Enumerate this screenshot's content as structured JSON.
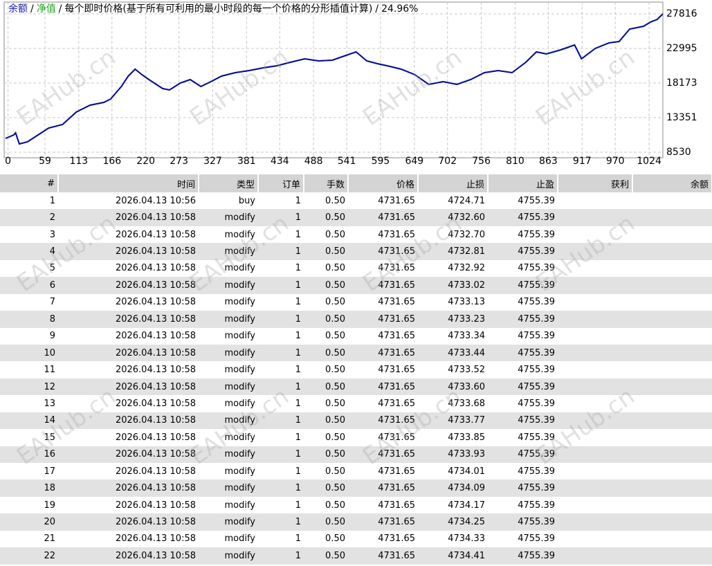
{
  "chart_data": {
    "type": "line",
    "title": "每个即时价格(基于所有可利用的最小时段的每一个价格的分形插值计算)",
    "title_separator": "/",
    "annotation": "24.96%",
    "x": [
      -4,
      9,
      12,
      18,
      31,
      48,
      65,
      87,
      109,
      131,
      153,
      164,
      181,
      192,
      203,
      214,
      225,
      247,
      258,
      275,
      291,
      308,
      324,
      341,
      363,
      385,
      407,
      429,
      451,
      474,
      496,
      518,
      540,
      556,
      573,
      590,
      606,
      628,
      650,
      672,
      695,
      717,
      739,
      761,
      783,
      805,
      827,
      844,
      860,
      883,
      905,
      916,
      938,
      960,
      976,
      993,
      1015,
      1026,
      1037,
      1046
    ],
    "series": [
      {
        "name": "余额",
        "color": "#0a0aa0",
        "values": [
          10460,
          10940,
          11230,
          9690,
          9980,
          10940,
          11910,
          12390,
          14120,
          15090,
          15470,
          15960,
          17690,
          19140,
          20100,
          19330,
          18660,
          17400,
          17210,
          18170,
          18660,
          17690,
          18370,
          19140,
          19620,
          19910,
          20290,
          20580,
          21070,
          21550,
          21260,
          21360,
          22030,
          22510,
          21260,
          20870,
          20580,
          20100,
          19330,
          17980,
          18370,
          17980,
          18660,
          19620,
          19910,
          19620,
          21070,
          22510,
          22220,
          22800,
          23480,
          21550,
          23000,
          23770,
          23960,
          25700,
          26080,
          26660,
          27050,
          27820
        ]
      },
      {
        "name": "净值",
        "color": "#1f9e1f",
        "values": [
          10460,
          10940,
          11230,
          9690,
          9980,
          10940,
          11910,
          12390,
          14120,
          15090,
          15470,
          15960,
          17690,
          19140,
          20100,
          19330,
          18660,
          17400,
          17210,
          18170,
          18660,
          17690,
          18370,
          19140,
          19620,
          19910,
          20290,
          20580,
          21070,
          21550,
          21260,
          21360,
          22030,
          22510,
          21260,
          20870,
          20580,
          20100,
          19330,
          17980,
          18370,
          17980,
          18660,
          19620,
          19910,
          19620,
          21070,
          22510,
          22220,
          22800,
          23480,
          21550,
          23000,
          23770,
          23960,
          25700,
          26080,
          26660,
          27050,
          27820
        ]
      }
    ],
    "xlim": [
      -4,
      1046
    ],
    "xticks": [
      0,
      59,
      113,
      166,
      220,
      273,
      327,
      381,
      434,
      488,
      541,
      595,
      649,
      702,
      756,
      810,
      863,
      917,
      970,
      1024
    ],
    "ylim": [
      7760,
      29360
    ],
    "yticks": [
      8530,
      13351,
      18173,
      22995,
      27816
    ],
    "grid": true
  },
  "watermark": "EAHub.cn",
  "table": {
    "headers": [
      "#",
      "时间",
      "类型",
      "订单",
      "手数",
      "价格",
      "止损",
      "止盈",
      "获利",
      "余额"
    ],
    "rows": [
      [
        "1",
        "2026.04.13 10:56",
        "buy",
        "1",
        "0.50",
        "4731.65",
        "4724.71",
        "4755.39"
      ],
      [
        "2",
        "2026.04.13 10:58",
        "modify",
        "1",
        "0.50",
        "4731.65",
        "4732.60",
        "4755.39"
      ],
      [
        "3",
        "2026.04.13 10:58",
        "modify",
        "1",
        "0.50",
        "4731.65",
        "4732.70",
        "4755.39"
      ],
      [
        "4",
        "2026.04.13 10:58",
        "modify",
        "1",
        "0.50",
        "4731.65",
        "4732.81",
        "4755.39"
      ],
      [
        "5",
        "2026.04.13 10:58",
        "modify",
        "1",
        "0.50",
        "4731.65",
        "4732.92",
        "4755.39"
      ],
      [
        "6",
        "2026.04.13 10:58",
        "modify",
        "1",
        "0.50",
        "4731.65",
        "4733.02",
        "4755.39"
      ],
      [
        "7",
        "2026.04.13 10:58",
        "modify",
        "1",
        "0.50",
        "4731.65",
        "4733.13",
        "4755.39"
      ],
      [
        "8",
        "2026.04.13 10:58",
        "modify",
        "1",
        "0.50",
        "4731.65",
        "4733.23",
        "4755.39"
      ],
      [
        "9",
        "2026.04.13 10:58",
        "modify",
        "1",
        "0.50",
        "4731.65",
        "4733.34",
        "4755.39"
      ],
      [
        "10",
        "2026.04.13 10:58",
        "modify",
        "1",
        "0.50",
        "4731.65",
        "4733.44",
        "4755.39"
      ],
      [
        "11",
        "2026.04.13 10:58",
        "modify",
        "1",
        "0.50",
        "4731.65",
        "4733.52",
        "4755.39"
      ],
      [
        "12",
        "2026.04.13 10:58",
        "modify",
        "1",
        "0.50",
        "4731.65",
        "4733.60",
        "4755.39"
      ],
      [
        "13",
        "2026.04.13 10:58",
        "modify",
        "1",
        "0.50",
        "4731.65",
        "4733.68",
        "4755.39"
      ],
      [
        "14",
        "2026.04.13 10:58",
        "modify",
        "1",
        "0.50",
        "4731.65",
        "4733.77",
        "4755.39"
      ],
      [
        "15",
        "2026.04.13 10:58",
        "modify",
        "1",
        "0.50",
        "4731.65",
        "4733.85",
        "4755.39"
      ],
      [
        "16",
        "2026.04.13 10:58",
        "modify",
        "1",
        "0.50",
        "4731.65",
        "4733.93",
        "4755.39"
      ],
      [
        "17",
        "2026.04.13 10:58",
        "modify",
        "1",
        "0.50",
        "4731.65",
        "4734.01",
        "4755.39"
      ],
      [
        "18",
        "2026.04.13 10:58",
        "modify",
        "1",
        "0.50",
        "4731.65",
        "4734.09",
        "4755.39"
      ],
      [
        "19",
        "2026.04.13 10:58",
        "modify",
        "1",
        "0.50",
        "4731.65",
        "4734.17",
        "4755.39"
      ],
      [
        "20",
        "2026.04.13 10:58",
        "modify",
        "1",
        "0.50",
        "4731.65",
        "4734.25",
        "4755.39"
      ],
      [
        "21",
        "2026.04.13 10:58",
        "modify",
        "1",
        "0.50",
        "4731.65",
        "4734.33",
        "4755.39"
      ],
      [
        "22",
        "2026.04.13 10:58",
        "modify",
        "1",
        "0.50",
        "4731.65",
        "4734.41",
        "4755.39"
      ]
    ]
  }
}
